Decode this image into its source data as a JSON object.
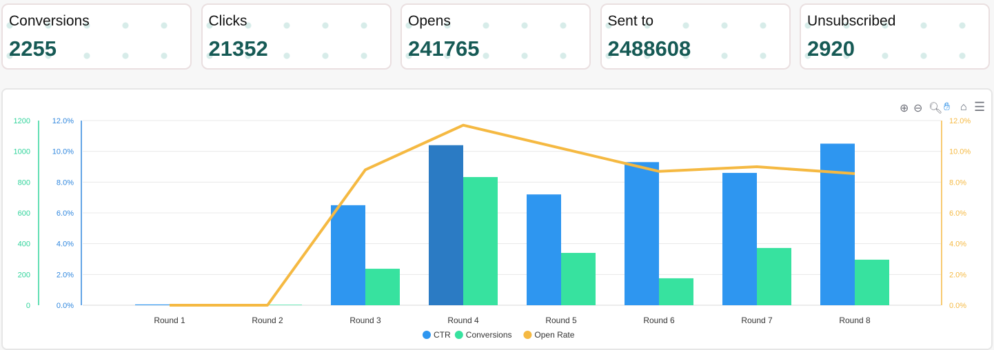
{
  "cards": [
    {
      "label": "Conversions",
      "value": "2255"
    },
    {
      "label": "Clicks",
      "value": "21352"
    },
    {
      "label": "Opens",
      "value": "241765"
    },
    {
      "label": "Sent to",
      "value": "2488608"
    },
    {
      "label": "Unsubscribed",
      "value": "2920"
    }
  ],
  "toolbar": {
    "icons": [
      "zoom-in-icon",
      "zoom-out-icon",
      "zoom-select-icon",
      "pan-hand-icon",
      "home-reset-icon",
      "menu-icon"
    ]
  },
  "chart_data": {
    "type": "bar",
    "categories": [
      "Round 1",
      "Round 2",
      "Round 3",
      "Round 4",
      "Round 5",
      "Round 6",
      "Round 7",
      "Round 8"
    ],
    "series": [
      {
        "name": "CTR",
        "type": "bar",
        "axis": "left-percent",
        "color": "#2e96f0",
        "values": [
          0.05,
          0.02,
          6.5,
          10.4,
          7.2,
          9.3,
          8.6,
          10.5
        ]
      },
      {
        "name": "Conversions",
        "type": "bar",
        "axis": "left-count",
        "color": "#37e29f",
        "values": [
          0,
          3,
          237,
          833,
          340,
          175,
          372,
          296
        ]
      },
      {
        "name": "Open Rate",
        "type": "line",
        "axis": "right-percent",
        "color": "#f5b942",
        "values": [
          0,
          0,
          8.8,
          11.7,
          10.2,
          8.7,
          9.0,
          8.55
        ]
      }
    ],
    "axes": {
      "left_count": {
        "ylim": [
          0,
          1200
        ],
        "ticks": [
          "0",
          "200",
          "400",
          "600",
          "800",
          "1000",
          "1200"
        ],
        "color": "#2fd39a"
      },
      "left_percent": {
        "ylim": [
          0,
          12
        ],
        "ticks": [
          "0.0%",
          "2.0%",
          "4.0%",
          "6.0%",
          "8.0%",
          "10.0%",
          "12.0%"
        ],
        "color": "#2e86de"
      },
      "right_percent": {
        "ylim": [
          0,
          12
        ],
        "ticks": [
          "0.0%",
          "2.0%",
          "4.0%",
          "6.0%",
          "8.0%",
          "10.0%",
          "12.0%"
        ],
        "color": "#f5b942"
      }
    },
    "highlighted": "Round 4 CTR",
    "grid": true,
    "legend": "bottom"
  }
}
